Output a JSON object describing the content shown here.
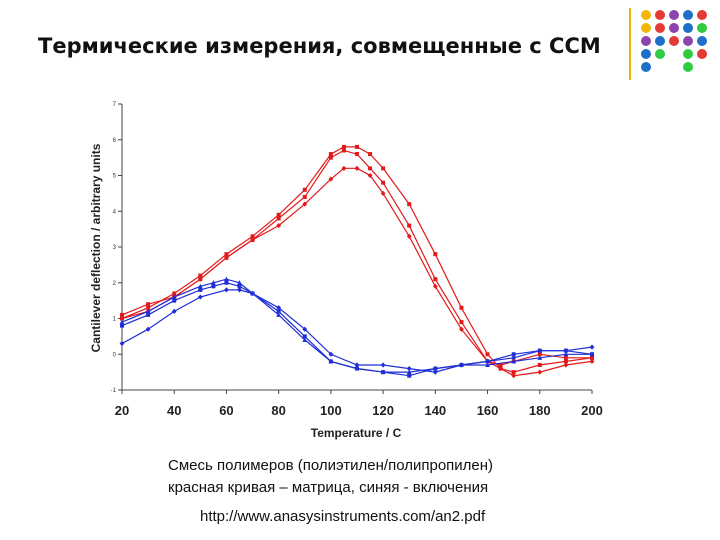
{
  "slide": {
    "title": "Термические измерения, совмещенные с ССМ",
    "caption_line1": "Смесь полимеров (полиэтилен/полипропилен)",
    "caption_line2": "красная кривая – матрица, синяя - включения",
    "url": "http://www.anasysinstruments.com/an2.pdf",
    "accent_line_color": "#e8b600",
    "dot_palette": [
      "#f2b705",
      "#e53935",
      "#8e44ad",
      "#1e6fc9",
      "#2ecc40"
    ]
  },
  "chart_data": {
    "type": "line",
    "xlabel": "Temperature / C",
    "ylabel": "Cantilever deflection / arbitrary units",
    "xlim": [
      20,
      200
    ],
    "ylim": [
      -1,
      7
    ],
    "x_ticks": [
      "20",
      "40",
      "60",
      "80",
      "100",
      "120",
      "140",
      "160",
      "180",
      "200"
    ],
    "y_ticks": [
      "-1",
      "0",
      "1",
      "2",
      "3",
      "4",
      "5",
      "6",
      "7"
    ],
    "grid": false,
    "legend": "none",
    "series": [
      {
        "color": "#e31a1c",
        "marker": "square",
        "x": [
          20,
          30,
          40,
          50,
          60,
          70,
          80,
          90,
          100,
          105,
          110,
          115,
          120,
          130,
          140,
          150,
          160,
          165,
          170,
          180,
          190,
          200
        ],
        "y": [
          1.0,
          1.3,
          1.7,
          2.2,
          2.8,
          3.3,
          3.9,
          4.6,
          5.6,
          5.8,
          5.8,
          5.6,
          5.2,
          4.2,
          2.8,
          1.3,
          0.0,
          -0.4,
          -0.5,
          -0.3,
          -0.2,
          -0.1
        ]
      },
      {
        "color": "#e31a1c",
        "marker": "square",
        "x": [
          20,
          30,
          40,
          50,
          60,
          70,
          80,
          90,
          100,
          105,
          110,
          115,
          120,
          130,
          140,
          150,
          160,
          165,
          170,
          180,
          190,
          200
        ],
        "y": [
          1.1,
          1.4,
          1.6,
          2.1,
          2.7,
          3.2,
          3.8,
          4.4,
          5.5,
          5.7,
          5.6,
          5.2,
          4.8,
          3.6,
          2.1,
          0.9,
          -0.2,
          -0.3,
          -0.2,
          0.0,
          -0.1,
          -0.1
        ]
      },
      {
        "color": "#e31a1c",
        "marker": "diamond",
        "x": [
          20,
          30,
          40,
          50,
          60,
          70,
          80,
          90,
          100,
          105,
          110,
          115,
          120,
          130,
          140,
          150,
          160,
          165,
          170,
          180,
          190,
          200
        ],
        "y": [
          1.0,
          1.2,
          1.6,
          2.1,
          2.7,
          3.2,
          3.6,
          4.2,
          4.9,
          5.2,
          5.2,
          5.0,
          4.5,
          3.3,
          1.9,
          0.7,
          -0.2,
          -0.4,
          -0.6,
          -0.5,
          -0.3,
          -0.2
        ]
      },
      {
        "color": "#1f2fd6",
        "marker": "square",
        "x": [
          20,
          30,
          40,
          50,
          55,
          60,
          65,
          70,
          80,
          90,
          100,
          110,
          120,
          130,
          140,
          150,
          160,
          170,
          180,
          190,
          200
        ],
        "y": [
          0.8,
          1.1,
          1.5,
          1.8,
          1.9,
          2.0,
          1.9,
          1.7,
          1.2,
          0.5,
          -0.2,
          -0.4,
          -0.5,
          -0.6,
          -0.4,
          -0.3,
          -0.2,
          0.0,
          0.1,
          0.1,
          0.0
        ]
      },
      {
        "color": "#1f2fd6",
        "marker": "triangle",
        "x": [
          20,
          30,
          40,
          50,
          55,
          60,
          65,
          70,
          80,
          90,
          100,
          110,
          120,
          130,
          140,
          150,
          160,
          170,
          180,
          190,
          200
        ],
        "y": [
          0.9,
          1.2,
          1.6,
          1.9,
          2.0,
          2.1,
          2.0,
          1.7,
          1.1,
          0.4,
          -0.2,
          -0.4,
          -0.5,
          -0.5,
          -0.4,
          -0.3,
          -0.3,
          -0.2,
          -0.1,
          0.0,
          0.0
        ]
      },
      {
        "color": "#1f2fd6",
        "marker": "diamond",
        "x": [
          20,
          30,
          40,
          50,
          60,
          65,
          70,
          80,
          90,
          100,
          110,
          120,
          130,
          140,
          150,
          160,
          170,
          180,
          190,
          200
        ],
        "y": [
          0.3,
          0.7,
          1.2,
          1.6,
          1.8,
          1.8,
          1.7,
          1.3,
          0.7,
          0.0,
          -0.3,
          -0.3,
          -0.4,
          -0.5,
          -0.3,
          -0.2,
          -0.1,
          0.1,
          0.1,
          0.2
        ]
      }
    ]
  }
}
